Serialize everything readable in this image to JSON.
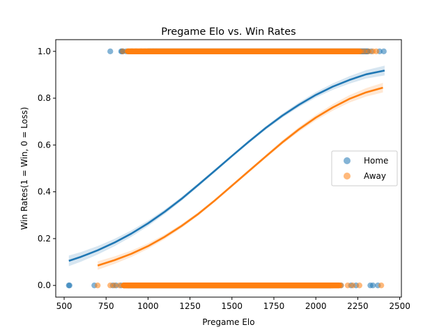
{
  "chart_data": {
    "type": "scatter",
    "title": "Pregame Elo vs. Win Rates",
    "xlabel": "Pregame Elo",
    "ylabel": "Win Rates(1 = Win, 0 = Loss)",
    "xlim": [
      450,
      2510
    ],
    "ylim": [
      -0.05,
      1.05
    ],
    "xticks": [
      500,
      750,
      1000,
      1250,
      1500,
      1750,
      2000,
      2250,
      2500
    ],
    "yticks": [
      0.0,
      0.2,
      0.4,
      0.6,
      0.8,
      1.0
    ],
    "xtick_labels": [
      "500",
      "750",
      "1000",
      "1250",
      "1500",
      "1750",
      "2000",
      "2250",
      "2500"
    ],
    "ytick_labels": [
      "0.0",
      "0.2",
      "0.4",
      "0.6",
      "0.8",
      "1.0"
    ],
    "grid": false,
    "legend": {
      "position": "center-right",
      "entries": [
        "Home",
        "Away"
      ]
    },
    "series": [
      {
        "name": "Home",
        "color": "#1f77b4",
        "points": {
          "win_y": 1,
          "win_x": [
            775,
            840,
            845,
            850,
            870,
            905,
            930,
            960,
            985,
            1000,
            1010,
            1030,
            1050,
            2330,
            2380,
            2405
          ],
          "win_band": [
            1000,
            2310
          ],
          "loss_y": 0,
          "loss_x": [
            528,
            532,
            680,
            790,
            810,
            840,
            860,
            870,
            880,
            2100,
            2150,
            2210,
            2240,
            2325,
            2340,
            2370
          ],
          "loss_band": [
            880,
            2090
          ]
        },
        "fit": {
          "x": [
            528,
            600,
            700,
            800,
            900,
            1000,
            1100,
            1200,
            1300,
            1400,
            1500,
            1600,
            1700,
            1800,
            1900,
            2000,
            2100,
            2200,
            2300,
            2410
          ],
          "y": [
            0.105,
            0.122,
            0.15,
            0.183,
            0.221,
            0.265,
            0.315,
            0.37,
            0.43,
            0.491,
            0.553,
            0.614,
            0.672,
            0.725,
            0.772,
            0.814,
            0.849,
            0.878,
            0.902,
            0.918
          ]
        }
      },
      {
        "name": "Away",
        "color": "#ff7f0e",
        "points": {
          "win_y": 1,
          "win_x": [
            850,
            880,
            900,
            925,
            955,
            975,
            2270,
            2290,
            2315,
            2340,
            2360
          ],
          "win_band": [
            880,
            2260
          ],
          "loss_y": 0,
          "loss_x": [
            700,
            775,
            800,
            830,
            855,
            870,
            2150,
            2190,
            2220,
            2260,
            2390
          ],
          "loss_band": [
            855,
            2140
          ]
        },
        "fit": {
          "x": [
            700,
            800,
            900,
            1000,
            1100,
            1200,
            1300,
            1400,
            1500,
            1600,
            1700,
            1800,
            1900,
            2000,
            2100,
            2200,
            2300,
            2400
          ],
          "y": [
            0.085,
            0.108,
            0.135,
            0.168,
            0.208,
            0.254,
            0.306,
            0.364,
            0.426,
            0.488,
            0.55,
            0.611,
            0.667,
            0.717,
            0.76,
            0.797,
            0.825,
            0.845
          ]
        }
      }
    ]
  }
}
